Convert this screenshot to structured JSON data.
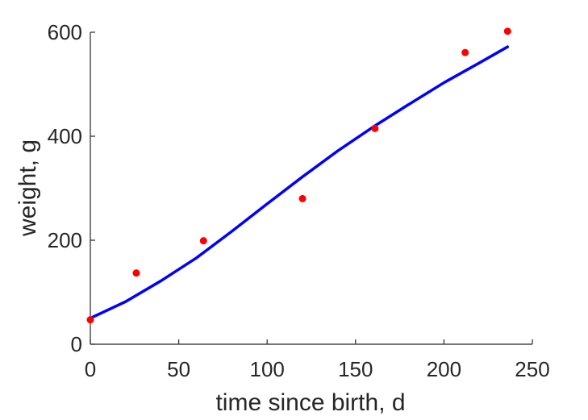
{
  "chart_data": {
    "type": "scatter",
    "title": "",
    "xlabel": "time since birth, d",
    "ylabel": "weight, g",
    "xlim": [
      0,
      250
    ],
    "ylim": [
      0,
      600
    ],
    "xticks": [
      0,
      50,
      100,
      150,
      200,
      250
    ],
    "yticks": [
      0,
      200,
      400,
      600
    ],
    "xtick_labels": [
      "0",
      "50",
      "100",
      "150",
      "200",
      "250"
    ],
    "ytick_labels": [
      "0",
      "200",
      "400",
      "600"
    ],
    "grid": false,
    "legend": "none",
    "series": [
      {
        "kind": "scatter",
        "color": "#ff0000",
        "x": [
          0,
          26,
          64,
          120,
          161,
          212,
          236
        ],
        "y": [
          47,
          137,
          199,
          280,
          415,
          561,
          602
        ]
      },
      {
        "kind": "line",
        "color": "#0000ff",
        "x": [
          0,
          20,
          40,
          60,
          80,
          100,
          120,
          140,
          160,
          180,
          200,
          220,
          236
        ],
        "y": [
          50,
          82,
          122,
          166,
          217,
          270,
          322,
          372,
          418,
          461,
          503,
          541,
          572
        ]
      }
    ]
  }
}
